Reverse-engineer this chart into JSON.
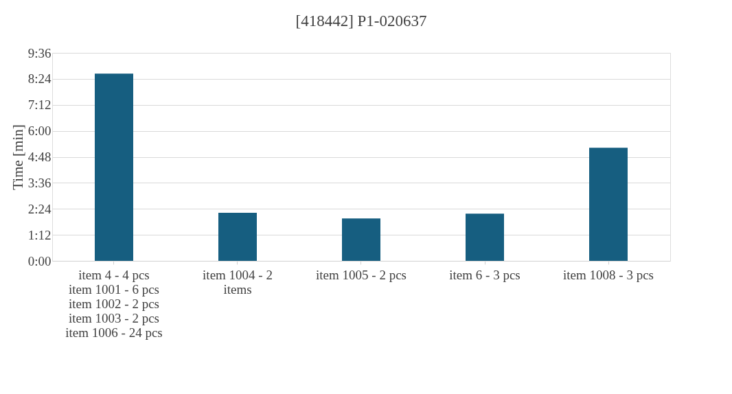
{
  "chart_data": {
    "type": "bar",
    "title": "[418442] P1-020637",
    "ylabel": "Time [min]",
    "categories": [
      "item 4 - 4 pcs\nitem 1001 - 6 pcs\nitem 1002 - 2 pcs\nitem 1003 - 2 pcs\nitem 1006 - 24 pcs",
      "item 1004 - 2 items",
      "item 1005 - 2 pcs",
      "item 6 - 3 pcs",
      "item 1008 - 3 pcs"
    ],
    "values": [
      8.64,
      2.22,
      1.96,
      2.18,
      5.22
    ],
    "color": "#165e80",
    "ylim": [
      0,
      9.6
    ],
    "yticks": [
      {
        "value": 0,
        "label": "0:00"
      },
      {
        "value": 1.2,
        "label": "1:12"
      },
      {
        "value": 2.4,
        "label": "2:24"
      },
      {
        "value": 3.6,
        "label": "3:36"
      },
      {
        "value": 4.8,
        "label": "4:48"
      },
      {
        "value": 6.0,
        "label": "6:00"
      },
      {
        "value": 7.2,
        "label": "7:12"
      },
      {
        "value": 8.4,
        "label": "8:24"
      },
      {
        "value": 9.6,
        "label": "9:36"
      }
    ],
    "grid": "y"
  }
}
